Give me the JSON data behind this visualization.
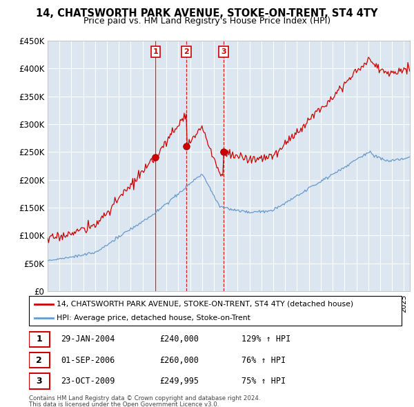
{
  "title": "14, CHATSWORTH PARK AVENUE, STOKE-ON-TRENT, ST4 4TY",
  "subtitle": "Price paid vs. HM Land Registry's House Price Index (HPI)",
  "legend_line1": "14, CHATSWORTH PARK AVENUE, STOKE-ON-TRENT, ST4 4TY (detached house)",
  "legend_line2": "HPI: Average price, detached house, Stoke-on-Trent",
  "footer1": "Contains HM Land Registry data © Crown copyright and database right 2024.",
  "footer2": "This data is licensed under the Open Government Licence v3.0.",
  "transactions": [
    {
      "num": 1,
      "date": "29-JAN-2004",
      "price": "£240,000",
      "hpi": "129% ↑ HPI"
    },
    {
      "num": 2,
      "date": "01-SEP-2006",
      "price": "£260,000",
      "hpi": "76% ↑ HPI"
    },
    {
      "num": 3,
      "date": "23-OCT-2009",
      "price": "£249,995",
      "hpi": "75% ↑ HPI"
    }
  ],
  "vline_dates": [
    2004.08,
    2006.67,
    2009.81
  ],
  "vline_styles": [
    "solid",
    "dashed",
    "dashed"
  ],
  "transaction_prices": [
    240000,
    260000,
    249995
  ],
  "ylim": [
    0,
    450000
  ],
  "yticks": [
    0,
    50000,
    100000,
    150000,
    200000,
    250000,
    300000,
    350000,
    400000,
    450000
  ],
  "ytick_labels": [
    "£0",
    "£50K",
    "£100K",
    "£150K",
    "£200K",
    "£250K",
    "£300K",
    "£350K",
    "£400K",
    "£450K"
  ],
  "red_color": "#cc0000",
  "blue_color": "#6699cc",
  "plot_bg_color": "#dce6f0",
  "background_color": "#ffffff",
  "grid_color": "#ffffff"
}
